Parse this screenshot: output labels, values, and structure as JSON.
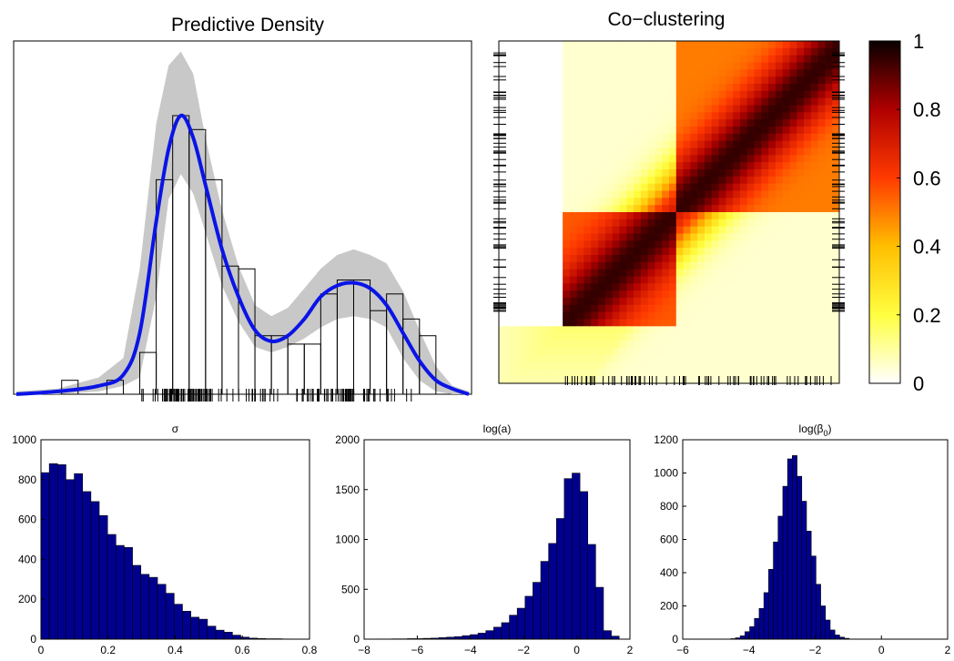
{
  "chart_data": [
    {
      "id": "density",
      "type": "histogram+line",
      "title": "Predictive Density",
      "bins": [
        {
          "x0": 0.11,
          "x1": 0.15,
          "h": 0.05
        },
        {
          "x0": 0.22,
          "x1": 0.26,
          "h": 0.05
        },
        {
          "x0": 0.26,
          "x1": 0.3,
          "h": 0.0
        },
        {
          "x0": 0.3,
          "x1": 0.34,
          "h": 0.15
        },
        {
          "x0": 0.34,
          "x1": 0.38,
          "h": 0.77
        },
        {
          "x0": 0.38,
          "x1": 0.42,
          "h": 1.0
        },
        {
          "x0": 0.42,
          "x1": 0.46,
          "h": 0.95
        },
        {
          "x0": 0.46,
          "x1": 0.5,
          "h": 0.77
        },
        {
          "x0": 0.5,
          "x1": 0.54,
          "h": 0.46
        },
        {
          "x0": 0.54,
          "x1": 0.58,
          "h": 0.45
        },
        {
          "x0": 0.58,
          "x1": 0.62,
          "h": 0.21
        },
        {
          "x0": 0.62,
          "x1": 0.66,
          "h": 0.21
        },
        {
          "x0": 0.66,
          "x1": 0.7,
          "h": 0.18
        },
        {
          "x0": 0.7,
          "x1": 0.74,
          "h": 0.18
        },
        {
          "x0": 0.74,
          "x1": 0.78,
          "h": 0.36
        },
        {
          "x0": 0.78,
          "x1": 0.82,
          "h": 0.41
        },
        {
          "x0": 0.82,
          "x1": 0.86,
          "h": 0.41
        },
        {
          "x0": 0.86,
          "x1": 0.9,
          "h": 0.3
        },
        {
          "x0": 0.9,
          "x1": 0.94,
          "h": 0.36
        },
        {
          "x0": 0.94,
          "x1": 0.98,
          "h": 0.27
        },
        {
          "x0": 0.98,
          "x1": 1.02,
          "h": 0.21
        }
      ],
      "curve": {
        "mean": [
          [
            0,
            0.0
          ],
          [
            0.1,
            0.01
          ],
          [
            0.2,
            0.03
          ],
          [
            0.26,
            0.07
          ],
          [
            0.3,
            0.22
          ],
          [
            0.34,
            0.62
          ],
          [
            0.37,
            0.88
          ],
          [
            0.4,
            1.0
          ],
          [
            0.43,
            0.92
          ],
          [
            0.46,
            0.75
          ],
          [
            0.5,
            0.52
          ],
          [
            0.54,
            0.35
          ],
          [
            0.58,
            0.23
          ],
          [
            0.62,
            0.19
          ],
          [
            0.66,
            0.21
          ],
          [
            0.7,
            0.27
          ],
          [
            0.74,
            0.35
          ],
          [
            0.78,
            0.39
          ],
          [
            0.82,
            0.4
          ],
          [
            0.86,
            0.38
          ],
          [
            0.9,
            0.32
          ],
          [
            0.94,
            0.22
          ],
          [
            0.98,
            0.12
          ],
          [
            1.02,
            0.05
          ],
          [
            1.06,
            0.02
          ],
          [
            1.1,
            0.0
          ]
        ],
        "upper": [
          [
            0,
            0.01
          ],
          [
            0.1,
            0.02
          ],
          [
            0.2,
            0.06
          ],
          [
            0.26,
            0.13
          ],
          [
            0.3,
            0.45
          ],
          [
            0.34,
            0.97
          ],
          [
            0.37,
            1.18
          ],
          [
            0.4,
            1.23
          ],
          [
            0.43,
            1.15
          ],
          [
            0.46,
            0.92
          ],
          [
            0.5,
            0.66
          ],
          [
            0.54,
            0.46
          ],
          [
            0.58,
            0.32
          ],
          [
            0.62,
            0.28
          ],
          [
            0.66,
            0.31
          ],
          [
            0.7,
            0.38
          ],
          [
            0.74,
            0.45
          ],
          [
            0.78,
            0.5
          ],
          [
            0.82,
            0.52
          ],
          [
            0.86,
            0.5
          ],
          [
            0.9,
            0.47
          ],
          [
            0.94,
            0.37
          ],
          [
            0.98,
            0.23
          ],
          [
            1.02,
            0.1
          ],
          [
            1.06,
            0.03
          ],
          [
            1.1,
            0.01
          ]
        ],
        "lower": [
          [
            0,
            0.0
          ],
          [
            0.1,
            0.0
          ],
          [
            0.2,
            0.01
          ],
          [
            0.26,
            0.03
          ],
          [
            0.3,
            0.06
          ],
          [
            0.34,
            0.35
          ],
          [
            0.37,
            0.7
          ],
          [
            0.4,
            0.79
          ],
          [
            0.43,
            0.72
          ],
          [
            0.46,
            0.58
          ],
          [
            0.5,
            0.39
          ],
          [
            0.54,
            0.26
          ],
          [
            0.58,
            0.17
          ],
          [
            0.62,
            0.15
          ],
          [
            0.66,
            0.17
          ],
          [
            0.7,
            0.2
          ],
          [
            0.74,
            0.24
          ],
          [
            0.78,
            0.27
          ],
          [
            0.82,
            0.28
          ],
          [
            0.86,
            0.27
          ],
          [
            0.9,
            0.24
          ],
          [
            0.94,
            0.13
          ],
          [
            0.98,
            0.05
          ],
          [
            1.02,
            0.01
          ],
          [
            1.06,
            0.0
          ],
          [
            1.1,
            0.0
          ]
        ]
      },
      "rug_note": "data points shown as tick marks along the x axis"
    },
    {
      "id": "coclustering",
      "type": "heatmap",
      "title": "Co−clustering",
      "colorbar_ticks": [
        "0",
        "0.2",
        "0.4",
        "0.6",
        "0.8",
        "1"
      ],
      "cmap": "hot-reversed"
    },
    {
      "id": "sigma",
      "type": "bar",
      "title": "σ",
      "xlim": [
        0,
        0.8
      ],
      "ylim": [
        0,
        1000
      ],
      "xticks": [
        "0",
        "0.2",
        "0.4",
        "0.6",
        "0.8"
      ],
      "yticks": [
        "0",
        "200",
        "400",
        "600",
        "800",
        "1000"
      ],
      "bin_width": 0.0248,
      "x_start": 0.0,
      "values": [
        835,
        880,
        875,
        800,
        830,
        740,
        690,
        620,
        525,
        470,
        460,
        370,
        325,
        310,
        275,
        230,
        175,
        140,
        110,
        100,
        65,
        45,
        35,
        20,
        10,
        5,
        3,
        2,
        2,
        1
      ]
    },
    {
      "id": "loga",
      "type": "bar",
      "title": "log(a)",
      "xlim": [
        -8,
        2
      ],
      "ylim": [
        0,
        2000
      ],
      "xticks": [
        "−8",
        "−6",
        "−4",
        "−2",
        "0",
        "2"
      ],
      "yticks": [
        "0",
        "500",
        "1000",
        "1500",
        "2000"
      ],
      "bin_width": 0.295,
      "x_start": -7.55,
      "values": [
        2,
        2,
        3,
        3,
        5,
        5,
        8,
        10,
        15,
        20,
        25,
        35,
        45,
        60,
        85,
        120,
        165,
        240,
        310,
        430,
        570,
        780,
        960,
        1210,
        1610,
        1665,
        1480,
        950,
        520,
        85,
        30
      ]
    },
    {
      "id": "logbeta",
      "type": "bar",
      "title": "log(β",
      "title_sub": "0",
      "title_close": ")",
      "xlim": [
        -6,
        2
      ],
      "ylim": [
        0,
        1200
      ],
      "xticks": [
        "−6",
        "−4",
        "−2",
        "0",
        "2"
      ],
      "yticks": [
        "0",
        "200",
        "400",
        "600",
        "800",
        "1000",
        "1200"
      ],
      "bin_width": 0.143,
      "x_start": -4.55,
      "values": [
        3,
        8,
        20,
        45,
        75,
        125,
        185,
        280,
        420,
        585,
        740,
        920,
        1085,
        1105,
        980,
        830,
        650,
        500,
        330,
        200,
        115,
        55,
        25,
        12,
        5
      ]
    }
  ]
}
